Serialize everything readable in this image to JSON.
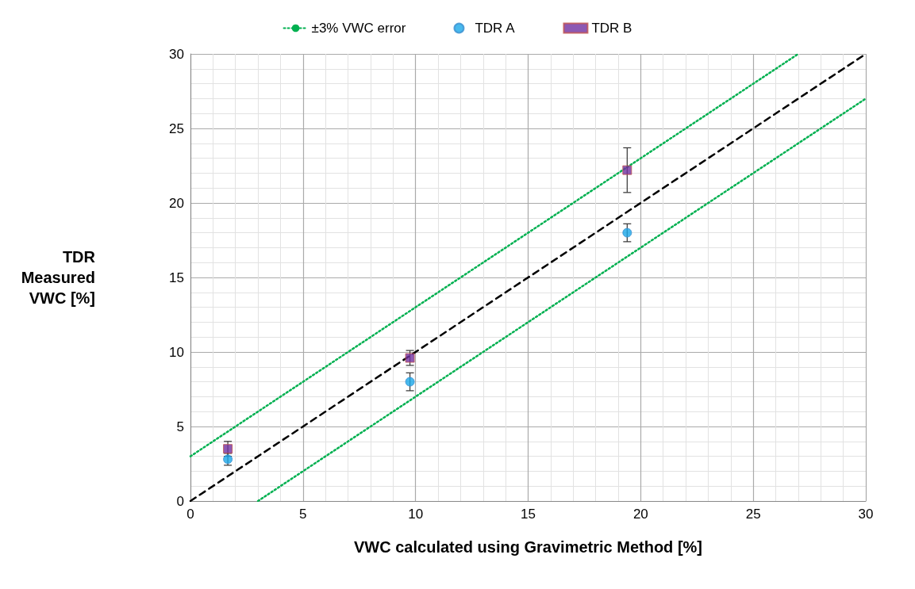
{
  "chart_data": {
    "type": "scatter",
    "xlabel": "VWC calculated using Gravimetric Method [%]",
    "ylabel": "TDR\nMeasured\nVWC [%]",
    "xlim": [
      0,
      30
    ],
    "xticks": [
      0,
      5,
      10,
      15,
      20,
      25,
      30
    ],
    "ylim": [
      0,
      30
    ],
    "yticks": [
      0,
      5,
      10,
      15,
      20,
      25,
      30
    ],
    "grid": true,
    "legend": "top",
    "series": [
      {
        "name": "±3% VWC error",
        "type": "line",
        "color": "#00b050",
        "line_style": "dotted",
        "marker": "none",
        "x": [
          0,
          27
        ],
        "values": [
          3,
          30
        ]
      },
      {
        "type": "line",
        "color": "#00b050",
        "line_style": "dotted",
        "marker": "none",
        "x": [
          3,
          30
        ],
        "values": [
          0,
          27
        ]
      },
      {
        "type": "line",
        "color": "#000000",
        "line_style": "dashed",
        "marker": "none",
        "x": [
          0,
          30
        ],
        "values": [
          0,
          30
        ]
      },
      {
        "name": "TDR A",
        "color": "#1aa7e8",
        "marker": "circle",
        "x": [
          1.66,
          9.75,
          19.4
        ],
        "values": [
          2.8,
          8.0,
          18.0
        ],
        "errors": [
          0.4,
          0.6,
          0.6
        ]
      },
      {
        "name": "TDR B",
        "color": "#7030a0",
        "marker": "square",
        "x": [
          1.66,
          9.75,
          19.4
        ],
        "values": [
          3.5,
          9.6,
          22.2
        ],
        "errors": [
          0.5,
          0.5,
          1.5
        ]
      }
    ]
  }
}
